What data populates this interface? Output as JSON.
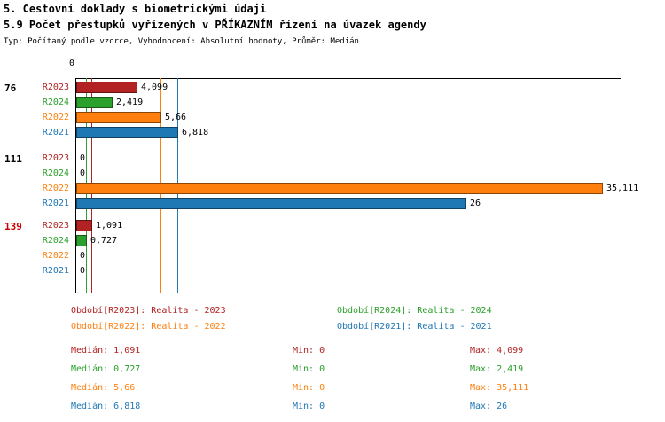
{
  "header": {
    "title1": "5. Cestovní doklady s biometrickými údaji",
    "title2": "5.9 Počet přestupků vyřízených v PŘÍKAZNÍM řízení na úvazek agendy",
    "subtitle": "Typ: Počítaný podle vzorce, Vyhodnocení: Absolutní hodnoty, Průměr: Medián"
  },
  "colors": {
    "R2023": "#b22222",
    "R2024": "#2ca02c",
    "R2022": "#ff7f0e",
    "R2021": "#1f77b4",
    "highlight": "#cc0000",
    "axis": "#000000",
    "value_label": "#000000"
  },
  "chart_data": {
    "type": "bar",
    "orientation": "horizontal",
    "x_axis": {
      "zero_label": "0",
      "xlim": [
        0,
        36
      ]
    },
    "series_order": [
      "R2023",
      "R2024",
      "R2022",
      "R2021"
    ],
    "groups": [
      {
        "label": "76",
        "label_color": "#000000",
        "bars": [
          {
            "series": "R2023",
            "value": 4.099,
            "label": "4,099"
          },
          {
            "series": "R2024",
            "value": 2.419,
            "label": "2,419"
          },
          {
            "series": "R2022",
            "value": 5.66,
            "label": "5,66"
          },
          {
            "series": "R2021",
            "value": 6.818,
            "label": "6,818"
          }
        ]
      },
      {
        "label": "111",
        "label_color": "#000000",
        "bars": [
          {
            "series": "R2023",
            "value": 0,
            "label": "0"
          },
          {
            "series": "R2024",
            "value": 0,
            "label": "0"
          },
          {
            "series": "R2022",
            "value": 35.111,
            "label": "35,111"
          },
          {
            "series": "R2021",
            "value": 26,
            "label": "26"
          }
        ]
      },
      {
        "label": "139",
        "label_color": "#cc0000",
        "bars": [
          {
            "series": "R2023",
            "value": 1.091,
            "label": "1,091"
          },
          {
            "series": "R2024",
            "value": 0.727,
            "label": "0,727"
          },
          {
            "series": "R2022",
            "value": 0,
            "label": "0"
          },
          {
            "series": "R2021",
            "value": 0,
            "label": "0"
          }
        ]
      }
    ],
    "median_lines": [
      {
        "series": "R2024",
        "value": 0.727
      },
      {
        "series": "R2023",
        "value": 1.091
      },
      {
        "series": "R2022",
        "value": 5.66
      },
      {
        "series": "R2021",
        "value": 6.818
      }
    ]
  },
  "legend": [
    {
      "series": "R2023",
      "text": "Období[R2023]: Realita - 2023"
    },
    {
      "series": "R2024",
      "text": "Období[R2024]: Realita - 2024"
    },
    {
      "series": "R2022",
      "text": "Období[R2022]: Realita - 2022"
    },
    {
      "series": "R2021",
      "text": "Období[R2021]: Realita - 2021"
    }
  ],
  "stats": [
    {
      "series": "R2023",
      "median": "Medián: 1,091",
      "min": "Min: 0",
      "max": "Max: 4,099"
    },
    {
      "series": "R2024",
      "median": "Medián: 0,727",
      "min": "Min: 0",
      "max": "Max: 2,419"
    },
    {
      "series": "R2022",
      "median": "Medián: 5,66",
      "min": "Min: 0",
      "max": "Max: 35,111"
    },
    {
      "series": "R2021",
      "median": "Medián: 6,818",
      "min": "Min: 0",
      "max": "Max: 26"
    }
  ]
}
